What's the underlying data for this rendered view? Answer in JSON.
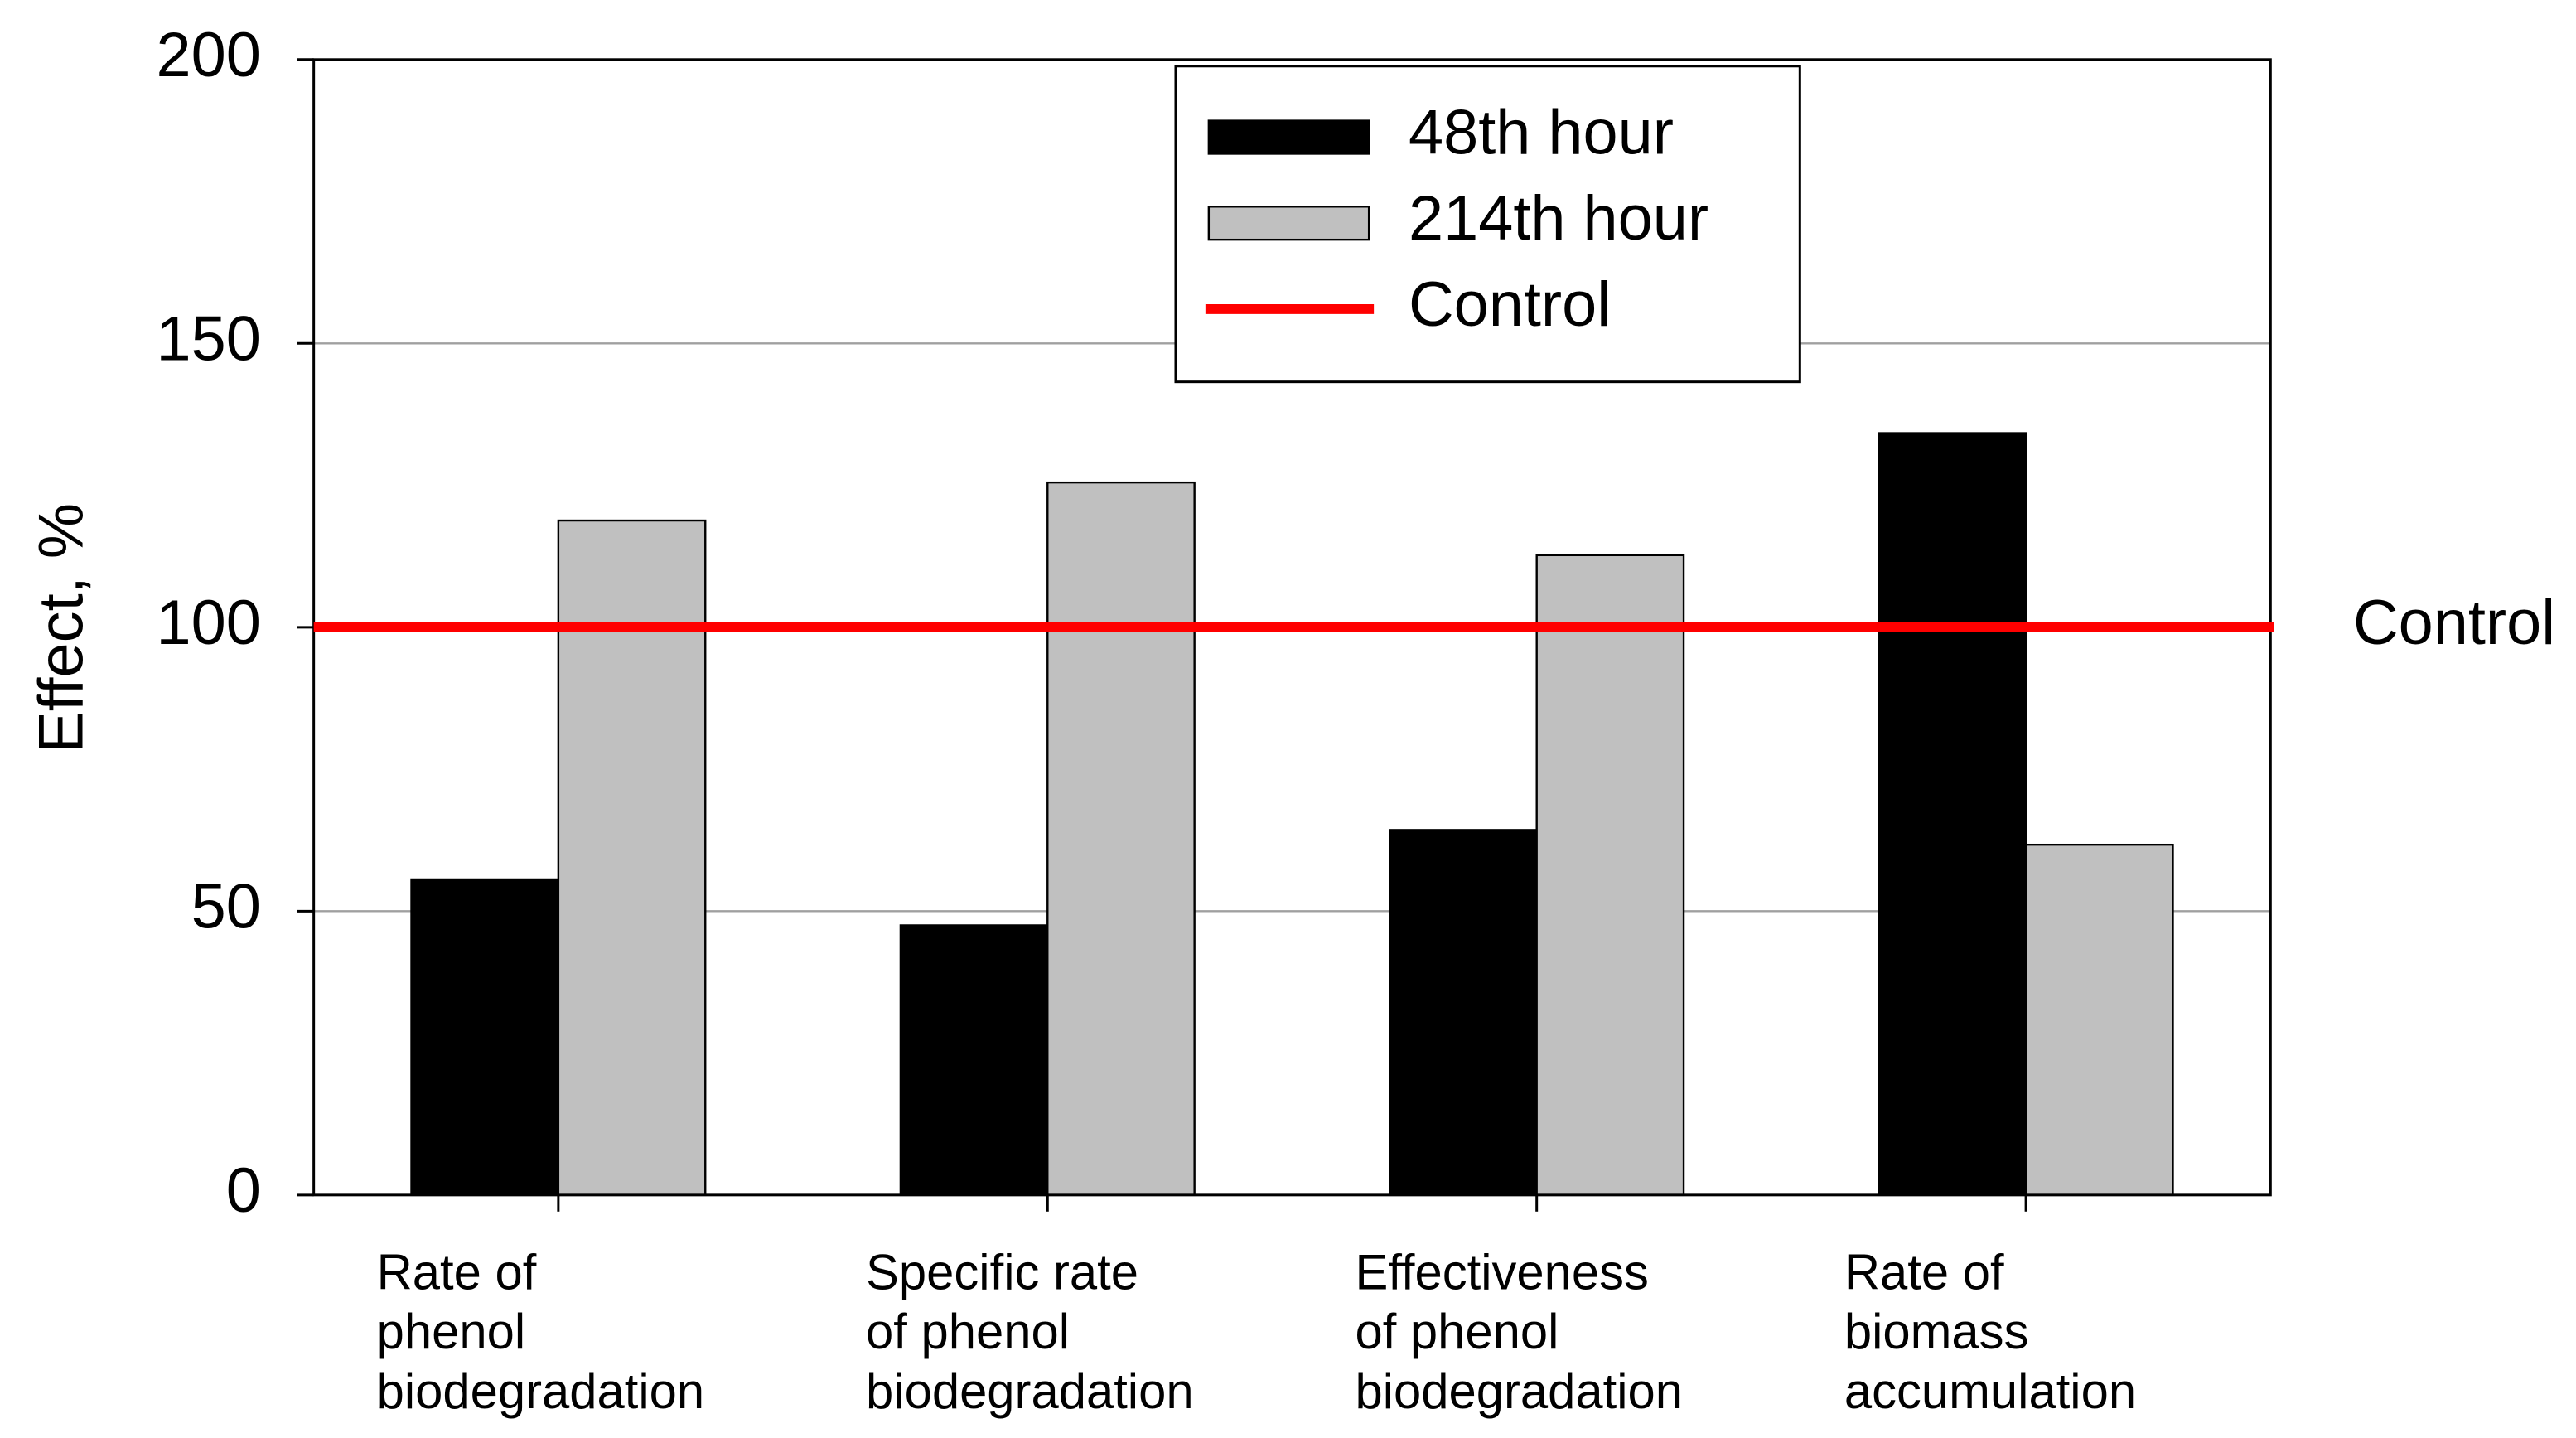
{
  "chart_data": {
    "type": "bar",
    "y_label": "Effect, %",
    "categories": [
      [
        "Rate of",
        "phenol",
        "biodegradation"
      ],
      [
        "Specific rate",
        "of phenol",
        "biodegradation"
      ],
      [
        "Effectiveness",
        "of phenol",
        "biodegradation"
      ],
      [
        "Rate of",
        "biomass",
        "accumulation"
      ]
    ],
    "series": [
      {
        "name": "48th hour",
        "color": "#000000",
        "values": [
          55.6,
          47.5,
          64.3,
          134.2
        ]
      },
      {
        "name": "214th hour",
        "color": "#c0c0c0",
        "values": [
          118.8,
          125.5,
          112.7,
          61.7
        ]
      }
    ],
    "reference_line": {
      "name": "Control",
      "label": "Control",
      "value": 100,
      "color": "#ff0000"
    },
    "ylim": [
      0,
      200
    ],
    "yticks": [
      0,
      50,
      100,
      150,
      200
    ],
    "grid": true
  }
}
